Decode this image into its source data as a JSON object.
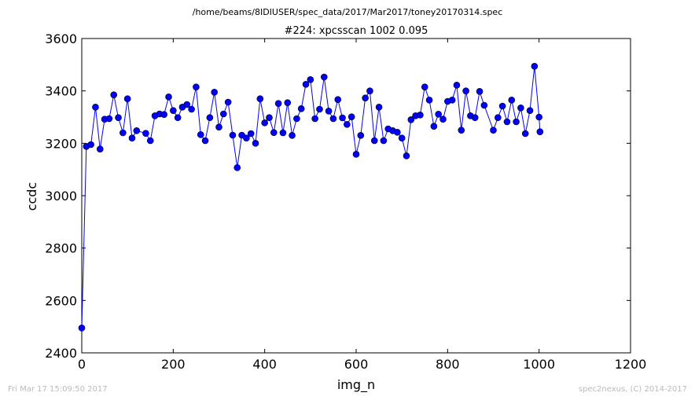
{
  "header": {
    "file_path": "/home/beams/8IDIUSER/spec_data/2017/Mar2017/toney20170314.spec"
  },
  "footer": {
    "timestamp": "Fri Mar 17 15:09:50 2017",
    "credit": "spec2nexus, (C) 2014-2017"
  },
  "chart_data": {
    "type": "line",
    "title": "#224: xpcsscan 1002 0.095",
    "xlabel": "img_n",
    "ylabel": "ccdc",
    "xlim": [
      0,
      1200
    ],
    "ylim": [
      2400,
      3600
    ],
    "xticks": [
      0,
      200,
      400,
      600,
      800,
      1000,
      1200
    ],
    "yticks": [
      2400,
      2600,
      2800,
      3000,
      3200,
      3400,
      3600
    ],
    "grid": false,
    "marker": "circle",
    "color": "#0000ff",
    "x": [
      0,
      10,
      20,
      30,
      40,
      50,
      60,
      70,
      80,
      90,
      100,
      110,
      120,
      140,
      150,
      160,
      170,
      180,
      190,
      200,
      210,
      220,
      230,
      240,
      250,
      260,
      270,
      280,
      290,
      300,
      310,
      320,
      330,
      340,
      350,
      360,
      370,
      380,
      390,
      400,
      410,
      420,
      430,
      440,
      450,
      460,
      470,
      480,
      490,
      500,
      510,
      520,
      530,
      540,
      550,
      560,
      570,
      580,
      590,
      600,
      610,
      620,
      630,
      640,
      650,
      660,
      670,
      680,
      690,
      700,
      710,
      720,
      730,
      740,
      750,
      760,
      770,
      780,
      790,
      800,
      810,
      820,
      830,
      840,
      850,
      860,
      870,
      880,
      900,
      910,
      920,
      930,
      940,
      950,
      960,
      970,
      980,
      990,
      1000,
      1002
    ],
    "y": [
      2495,
      3188,
      3195,
      3338,
      3178,
      3292,
      3294,
      3385,
      3298,
      3240,
      3370,
      3220,
      3248,
      3238,
      3210,
      3305,
      3312,
      3310,
      3377,
      3325,
      3298,
      3338,
      3348,
      3330,
      3415,
      3233,
      3210,
      3298,
      3395,
      3262,
      3312,
      3357,
      3231,
      3107,
      3231,
      3220,
      3237,
      3200,
      3370,
      3278,
      3298,
      3241,
      3352,
      3240,
      3355,
      3230,
      3294,
      3332,
      3425,
      3443,
      3294,
      3330,
      3453,
      3323,
      3294,
      3367,
      3297,
      3272,
      3301,
      3158,
      3230,
      3373,
      3400,
      3210,
      3338,
      3210,
      3255,
      3248,
      3242,
      3220,
      3152,
      3290,
      3305,
      3308,
      3415,
      3365,
      3265,
      3311,
      3292,
      3360,
      3365,
      3422,
      3250,
      3400,
      3305,
      3298,
      3398,
      3345,
      3250,
      3298,
      3342,
      3282,
      3365,
      3282,
      3335,
      3237,
      3325,
      3494,
      3300,
      3244
    ]
  }
}
